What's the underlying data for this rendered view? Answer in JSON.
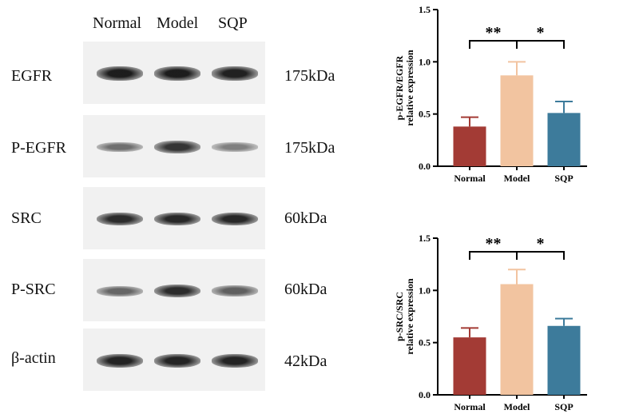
{
  "blot": {
    "lanes": [
      "Normal",
      "Model",
      "SQP"
    ],
    "rows": [
      {
        "protein": "EGFR",
        "size": "175kDa",
        "intensity": [
          0.95,
          0.95,
          0.92
        ]
      },
      {
        "protein": "P-EGFR",
        "size": "175kDa",
        "intensity": [
          0.45,
          0.8,
          0.35
        ]
      },
      {
        "protein": "SRC",
        "size": "60kDa",
        "intensity": [
          0.85,
          0.88,
          0.88
        ]
      },
      {
        "protein": "P-SRC",
        "size": "60kDa",
        "intensity": [
          0.5,
          0.85,
          0.55
        ]
      },
      {
        "protein": "β-actin",
        "size": "42kDa",
        "intensity": [
          0.9,
          0.9,
          0.9
        ]
      }
    ]
  },
  "colors": {
    "normal": "#A33B35",
    "model": "#F2C4A0",
    "sqp": "#3D7B9B"
  },
  "chart_data": [
    {
      "type": "bar",
      "ylabel_line1": "p-EGFR/EGFR",
      "ylabel_line2": "relative expression",
      "categories": [
        "Normal",
        "Model",
        "SQP"
      ],
      "values": [
        0.38,
        0.87,
        0.51
      ],
      "errors": [
        0.09,
        0.13,
        0.11
      ],
      "ylim": [
        0,
        1.5
      ],
      "yticks": [
        "0.0",
        "0.5",
        "1.0",
        "1.5"
      ],
      "significance": [
        {
          "from": 0,
          "to": 1,
          "label": "**"
        },
        {
          "from": 1,
          "to": 2,
          "label": "*"
        }
      ]
    },
    {
      "type": "bar",
      "ylabel_line1": "p-SRC/SRC",
      "ylabel_line2": "relative expression",
      "categories": [
        "Normal",
        "Model",
        "SQP"
      ],
      "values": [
        0.55,
        1.06,
        0.66
      ],
      "errors": [
        0.09,
        0.14,
        0.07
      ],
      "ylim": [
        0,
        1.5
      ],
      "yticks": [
        "0.0",
        "0.5",
        "1.0",
        "1.5"
      ],
      "significance": [
        {
          "from": 0,
          "to": 1,
          "label": "**"
        },
        {
          "from": 1,
          "to": 2,
          "label": "*"
        }
      ]
    }
  ]
}
